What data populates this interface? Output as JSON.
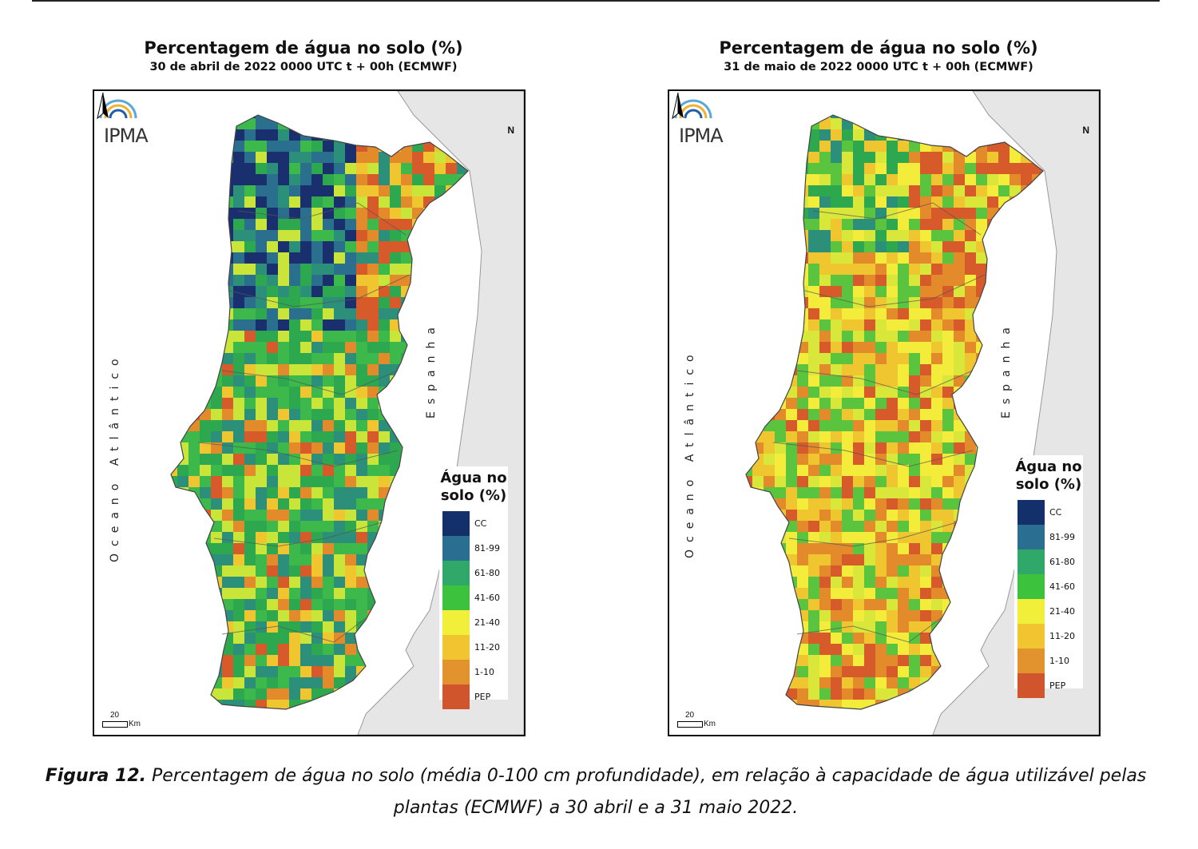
{
  "panels": [
    {
      "title": "Percentagem de água no solo (%)",
      "subtitle": "30 de abril de 2022 0000 UTC t + 00h (ECMWF)",
      "dominant": [
        "#2ea84f",
        "#3db84a",
        "#2b8f7a",
        "#c9e53a"
      ],
      "hot": [
        "#1a2f6e",
        "#2b6f8f"
      ],
      "dry": [
        "#d65a2a",
        "#e38a2a",
        "#f0c630"
      ]
    },
    {
      "title": "Percentagem de água no solo (%)",
      "subtitle": "31 de maio de 2022 0000 UTC t + 00h (ECMWF)",
      "dominant": [
        "#f3ec3a",
        "#d9e63a",
        "#f0c630",
        "#5bc43e"
      ],
      "hot": [
        "#2ea84f",
        "#2b8f7a"
      ],
      "dry": [
        "#d65a2a",
        "#e38a2a"
      ]
    }
  ],
  "map_labels": {
    "logo": "IPMA",
    "north": "N",
    "ocean": "Oceano Atlântico",
    "spain": "Espanha",
    "scale_value": "20",
    "scale_unit": "Km"
  },
  "legend": {
    "title_line1": "Água no",
    "title_line2": "solo (%)",
    "classes": [
      {
        "label": "CC",
        "color": "#14306b"
      },
      {
        "label": "81-99",
        "color": "#2a6f8f"
      },
      {
        "label": "61-80",
        "color": "#2fa86a"
      },
      {
        "label": "41-60",
        "color": "#3cc23c"
      },
      {
        "label": "21-40",
        "color": "#f2ef3a"
      },
      {
        "label": "11-20",
        "color": "#f0c530"
      },
      {
        "label": "1-10",
        "color": "#e2932e"
      },
      {
        "label": "PEP",
        "color": "#d0552d"
      }
    ]
  },
  "caption": {
    "label": "Figura 12.",
    "text": " Percentagem de água no solo (média 0-100 cm profundidade), em relação à capacidade de água utilizável pelas plantas (ECMWF) a 30 abril e a 31 maio 2022."
  }
}
